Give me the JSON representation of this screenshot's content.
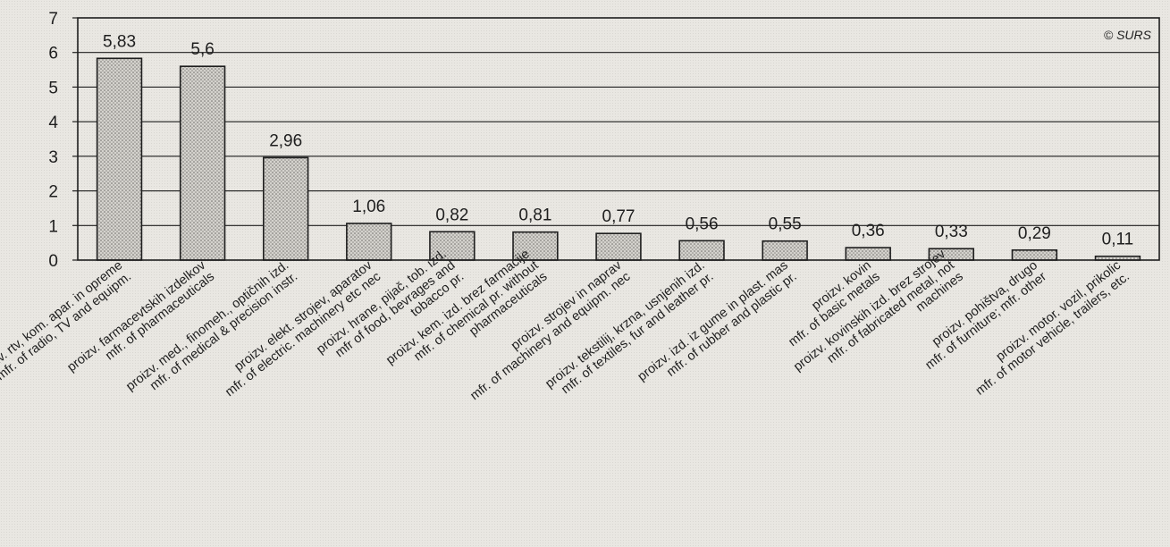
{
  "chart_data": {
    "type": "bar",
    "ylim": [
      0,
      7
    ],
    "yticks": [
      0,
      1,
      2,
      3,
      4,
      5,
      6,
      7
    ],
    "grid": true,
    "copyright": "© SURS",
    "values": [
      5.83,
      5.6,
      2.96,
      1.06,
      0.82,
      0.81,
      0.77,
      0.56,
      0.55,
      0.36,
      0.33,
      0.29,
      0.11
    ],
    "value_labels": [
      "5,83",
      "5,6",
      "2,96",
      "1,06",
      "0,82",
      "0,81",
      "0,77",
      "0,56",
      "0,55",
      "0,36",
      "0,33",
      "0,29",
      "0,11"
    ],
    "categories": [
      [
        "proizv. rtv, kom. apar. in opreme",
        "mfr. of radio, TV and equipm."
      ],
      [
        "proizv. farmacevtskih izdelkov",
        "mfr. of pharmaceuticals"
      ],
      [
        "proizv. med., finomeh., optičnih izd.",
        "mfr. of medical & precision instr."
      ],
      [
        "proizv. elekt. strojev, aparatov",
        "mfr. of electric. machinery etc nec"
      ],
      [
        "proizv. hrane, pijač, tob. izd.",
        "mfr of food, bevrages and",
        "tobacco pr."
      ],
      [
        "proizv. kem. izd. brez farmacije",
        "mfr. of chemical pr. without",
        "pharmaceuticals"
      ],
      [
        "proizv. strojev in naprav",
        "mfr. of machinery and equipm. nec"
      ],
      [
        "proizv. tekstilij, krzna, usnjenih izd.",
        "mfr. of textiles, fur and leather pr."
      ],
      [
        "proizv. izd. iz gume in plast. mas",
        "mfr. of rubber and plastic pr."
      ],
      [
        "proizv. kovin",
        "mfr. of basic metals"
      ],
      [
        "proizv. kovinskih izd. brez strojev",
        "mfr. of fabricated metal, not",
        "machines"
      ],
      [
        "proizv. pohištva, drugo",
        "mfr. of furniture; mfr. other"
      ],
      [
        "proizv. motor. vozil, prikolic",
        "mfr. of motor vehicle, trailers, etc."
      ]
    ]
  }
}
